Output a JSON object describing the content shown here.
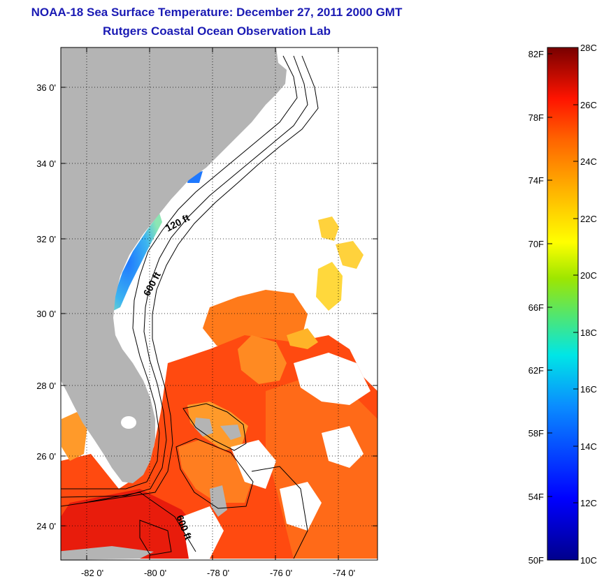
{
  "title": "NOAA-18 Sea Surface Temperature:  December 27, 2011 2000 GMT",
  "subtitle": "Rutgers Coastal Ocean Observation Lab",
  "map": {
    "lon_ticks": [
      "-82 0'",
      "-80 0'",
      "-78 0'",
      "-76 0'",
      "-74 0'"
    ],
    "lat_ticks": [
      "36 0'",
      "34 0'",
      "32 0'",
      "30 0'",
      "28 0'",
      "26 0'",
      "24 0'"
    ],
    "contour_labels": [
      "120 ft",
      "600 ft",
      "600 ft"
    ],
    "land_color": "#b4b4b4"
  },
  "colorbar": {
    "fahrenheit_labels": [
      "82F",
      "78F",
      "74F",
      "70F",
      "66F",
      "62F",
      "58F",
      "54F",
      "50F"
    ],
    "celsius_labels": [
      "28C",
      "26C",
      "24C",
      "22C",
      "20C",
      "18C",
      "16C",
      "14C",
      "12C",
      "10C"
    ],
    "range_c": [
      10,
      28
    ],
    "range_f": [
      50,
      82
    ]
  }
}
